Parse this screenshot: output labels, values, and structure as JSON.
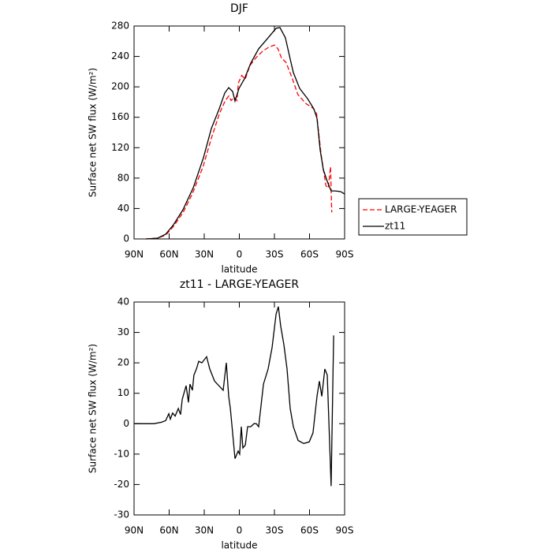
{
  "chart_data": [
    {
      "type": "line",
      "title": "DJF",
      "xlabel": "latitude",
      "ylabel": "Surface net SW flux (W/m²)",
      "xlim": [
        90,
        -90
      ],
      "ylim": [
        0,
        280
      ],
      "xticks": [
        {
          "value": 90,
          "label": "90N"
        },
        {
          "value": 60,
          "label": "60N"
        },
        {
          "value": 30,
          "label": "30N"
        },
        0,
        {
          "value": -30,
          "label": "30S"
        },
        {
          "value": -60,
          "label": "60S"
        },
        {
          "value": -90,
          "label": "90S"
        }
      ],
      "yticks": [
        0,
        40,
        80,
        120,
        160,
        200,
        240,
        280
      ],
      "legend": "right",
      "series": [
        {
          "name": "LARGE-YEAGER",
          "color": "#ff0000",
          "dash": true,
          "x": [
            80,
            70,
            63,
            56,
            48,
            40,
            31,
            24,
            17,
            12,
            9,
            7,
            4.4,
            2,
            0.9,
            -2,
            -5,
            -9,
            -14,
            -20,
            -25,
            -30,
            -33,
            -36,
            -40,
            -45,
            -50,
            -57,
            -63,
            -66,
            -70,
            -74,
            -76,
            -78,
            -79
          ],
          "values": [
            0,
            1,
            5,
            17,
            35,
            60,
            95,
            132,
            165,
            182,
            188,
            182,
            186,
            182,
            205,
            215,
            210,
            228,
            238,
            247,
            252,
            255,
            250,
            238,
            232,
            212,
            190,
            178,
            172,
            165,
            110,
            70,
            67,
            95,
            35
          ]
        },
        {
          "name": "zt11",
          "color": "#000000",
          "dash": false,
          "x": [
            79.9,
            69.8,
            63.0,
            56.3,
            48.2,
            39.4,
            30.7,
            23.9,
            17.2,
            12.5,
            9.1,
            5.7,
            3.7,
            0.3,
            -4.4,
            -9.8,
            -16.5,
            -24.6,
            -31.4,
            -34.7,
            -39.4,
            -43.5,
            -46.2,
            -51.6,
            -58.3,
            -63.7,
            -66.4,
            -69.1,
            -71.8,
            -75.2,
            -78.5,
            -81.9,
            -86.6,
            -90
          ],
          "values": [
            0,
            1,
            6.2,
            18.7,
            38.4,
            67.4,
            106.8,
            145.2,
            171.1,
            191.8,
            199,
            193.9,
            181.4,
            198,
            210.5,
            231.3,
            250,
            264.5,
            277,
            278,
            264.5,
            236.5,
            218.8,
            198,
            184.5,
            171,
            158.6,
            117,
            91.2,
            75.7,
            63.2,
            63.2,
            62.2,
            59
          ]
        }
      ]
    },
    {
      "type": "line",
      "title": "zt11 - LARGE-YEAGER",
      "xlabel": "latitude",
      "ylabel": "Surface net SW flux (W/m²)",
      "xlim": [
        90,
        -90
      ],
      "ylim": [
        -30,
        40
      ],
      "xticks": [
        {
          "value": 90,
          "label": "90N"
        },
        {
          "value": 60,
          "label": "60N"
        },
        {
          "value": 30,
          "label": "30N"
        },
        0,
        {
          "value": -30,
          "label": "30S"
        },
        {
          "value": -60,
          "label": "60S"
        },
        {
          "value": -90,
          "label": "90S"
        }
      ],
      "yticks": [
        -30,
        -20,
        -10,
        0,
        10,
        20,
        30,
        40
      ],
      "series": [
        {
          "color": "#000000",
          "dash": false,
          "x": [
            90,
            73.1,
            66.4,
            63.0,
            60.3,
            59.0,
            57.0,
            54.9,
            52.2,
            50.2,
            48.8,
            45.5,
            43.5,
            42.2,
            40.1,
            38.8,
            36.7,
            34.7,
            32.0,
            28.0,
            25.3,
            21.2,
            13.8,
            11.1,
            9.1,
            7.7,
            5.7,
            3.7,
            1.0,
            -0.3,
            -1.7,
            -3.0,
            -5.1,
            -7.1,
            -9.8,
            -12.5,
            -14.5,
            -16.5,
            -20.6,
            -24.6,
            -28.0,
            -31.4,
            -33.4,
            -35.4,
            -38.1,
            -40.8,
            -43.5,
            -46.2,
            -50.2,
            -55.0,
            -59.7,
            -63.0,
            -66.4,
            -68.4,
            -70.5,
            -73.1,
            -75.2,
            -78.5,
            -80.6
          ],
          "values": [
            0,
            0,
            0.5,
            1,
            3.3,
            1.5,
            3.5,
            2.5,
            5,
            3,
            8,
            12.5,
            7,
            13,
            11,
            16,
            18,
            20.5,
            20,
            22,
            18,
            14,
            11,
            20,
            9,
            5,
            -3,
            -11.5,
            -9,
            -10,
            -1,
            -8,
            -7,
            -1,
            -1,
            0,
            0,
            -1,
            13,
            18,
            25,
            36,
            38.5,
            32,
            26,
            18,
            5,
            -1,
            -5.5,
            -6.5,
            -6,
            -3,
            9,
            14,
            9,
            18,
            16,
            -20.5,
            29
          ]
        }
      ]
    }
  ]
}
